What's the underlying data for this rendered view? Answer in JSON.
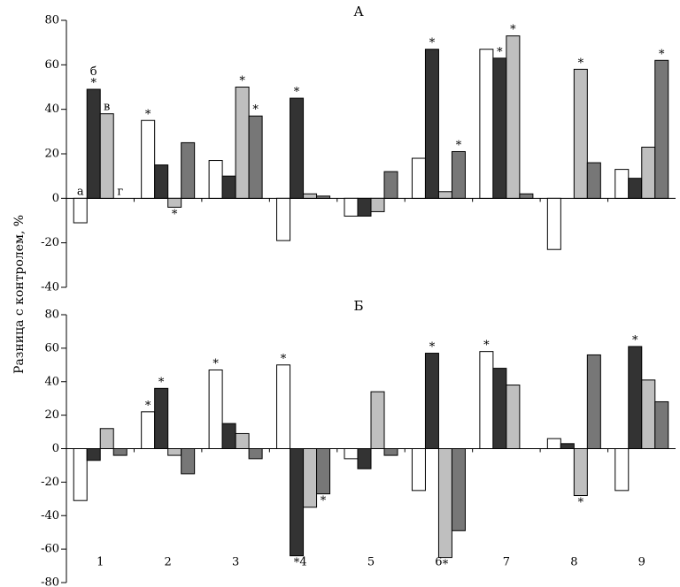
{
  "ylabel": "Разница с контролем, %",
  "chart_data": [
    {
      "type": "bar",
      "title": "А",
      "ylabel": "Разница с контролем, %",
      "ylim": [
        -40,
        80
      ],
      "yticks": [
        -40,
        -20,
        0,
        20,
        40,
        60,
        80
      ],
      "categories": [
        "1",
        "2",
        "3",
        "4",
        "5",
        "6",
        "7",
        "8",
        "9"
      ],
      "show_category_labels": false,
      "series": [
        {
          "label": "а",
          "color": "#ffffff",
          "values": [
            -11,
            35,
            17,
            -19,
            -8,
            18,
            67,
            -23,
            13
          ],
          "stars": [
            false,
            true,
            false,
            false,
            false,
            false,
            false,
            false,
            false
          ]
        },
        {
          "label": "б",
          "color": "#333333",
          "values": [
            49,
            15,
            10,
            45,
            -8,
            67,
            63,
            0,
            9
          ],
          "stars": [
            true,
            false,
            false,
            true,
            false,
            true,
            true,
            false,
            false
          ]
        },
        {
          "label": "в",
          "color": "#bfbfbf",
          "values": [
            38,
            -4,
            50,
            2,
            -6,
            3,
            73,
            58,
            23
          ],
          "stars": [
            false,
            true,
            true,
            false,
            false,
            false,
            true,
            true,
            false
          ]
        },
        {
          "label": "г",
          "color": "#777777",
          "values": [
            0,
            25,
            37,
            1,
            12,
            21,
            2,
            16,
            62
          ],
          "stars": [
            false,
            false,
            true,
            false,
            false,
            true,
            false,
            false,
            true
          ]
        }
      ]
    },
    {
      "type": "bar",
      "title": "Б",
      "ylabel": "Разница с контролем, %",
      "ylim": [
        -80,
        80
      ],
      "yticks": [
        -80,
        -60,
        -40,
        -20,
        0,
        20,
        40,
        60,
        80
      ],
      "categories": [
        "1",
        "2",
        "3",
        "4",
        "5",
        "6",
        "7",
        "8",
        "9"
      ],
      "show_category_labels": true,
      "series": [
        {
          "label": "",
          "color": "#ffffff",
          "values": [
            -31,
            22,
            47,
            50,
            -6,
            -25,
            58,
            6,
            -25
          ],
          "stars": [
            false,
            true,
            true,
            true,
            false,
            false,
            true,
            false,
            false
          ]
        },
        {
          "label": "",
          "color": "#333333",
          "values": [
            -7,
            36,
            15,
            -64,
            -12,
            57,
            48,
            3,
            61
          ],
          "stars": [
            false,
            true,
            false,
            true,
            false,
            true,
            false,
            false,
            true
          ]
        },
        {
          "label": "",
          "color": "#bfbfbf",
          "values": [
            12,
            -4,
            9,
            -35,
            34,
            -65,
            38,
            -28,
            41
          ],
          "stars": [
            false,
            false,
            false,
            false,
            false,
            true,
            false,
            true,
            false
          ]
        },
        {
          "label": "",
          "color": "#777777",
          "values": [
            -4,
            -15,
            -6,
            -27,
            -4,
            -49,
            0,
            56,
            28
          ],
          "stars": [
            false,
            false,
            false,
            true,
            false,
            false,
            false,
            false,
            false
          ]
        }
      ]
    }
  ]
}
